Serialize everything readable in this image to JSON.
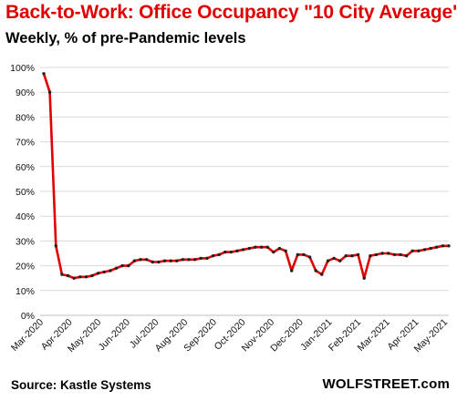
{
  "title": "Back-to-Work:  Office Occupancy \"10 City Average\"",
  "subtitle": "Weekly, % of pre-Pandemic levels",
  "source": "Source: Kastle Systems",
  "brand": "WOLFSTREET.com",
  "colors": {
    "title": "#e00000",
    "line": "#e00000",
    "marker": "#222222",
    "grid": "#d9d9d9"
  },
  "chart_data": {
    "type": "line",
    "title": "Back-to-Work:  Office Occupancy \"10 City Average\"",
    "subtitle": "Weekly, % of pre-Pandemic levels",
    "xlabel": "",
    "ylabel": "",
    "ylim": [
      0,
      100
    ],
    "yticks": [
      "0%",
      "10%",
      "20%",
      "30%",
      "40%",
      "50%",
      "60%",
      "70%",
      "80%",
      "90%",
      "100%"
    ],
    "xticks": [
      "Mar-2020",
      "Apr-2020",
      "May-2020",
      "Jun-2020",
      "Jul-2020",
      "Aug-2020",
      "Sep-2020",
      "Oct-2020",
      "Nov-2020",
      "Dec-2020",
      "Jan-2021",
      "Feb-2021",
      "Mar-2021",
      "Apr-2021",
      "May-2021"
    ],
    "grid": "horizontal",
    "legend": "none",
    "series": [
      {
        "values": [
          97.5,
          90,
          28,
          16.5,
          16,
          15,
          15.5,
          15.5,
          16,
          17,
          17.5,
          18,
          19,
          20,
          20,
          22,
          22.5,
          22.5,
          21.5,
          21.5,
          22,
          22,
          22,
          22.5,
          22.5,
          22.5,
          23,
          23,
          24,
          24.5,
          25.5,
          25.5,
          26,
          26.5,
          27,
          27.5,
          27.5,
          27.5,
          25.5,
          27,
          26,
          18,
          24.5,
          24.5,
          23.5,
          18,
          16.5,
          22,
          23,
          22,
          24,
          24,
          24.5,
          15,
          24,
          24.5,
          25,
          25,
          24.5,
          24.5,
          24,
          26,
          26,
          26.5,
          27,
          27.5,
          28,
          28
        ]
      }
    ]
  }
}
